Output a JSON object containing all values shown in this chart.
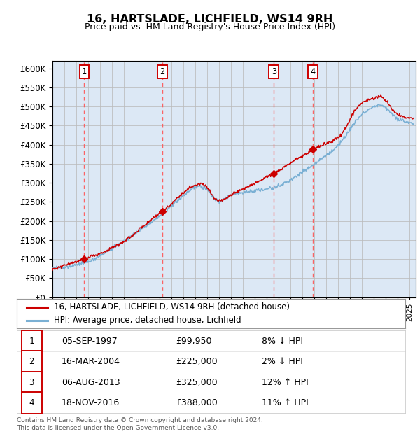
{
  "title": "16, HARTSLADE, LICHFIELD, WS14 9RH",
  "subtitle": "Price paid vs. HM Land Registry's House Price Index (HPI)",
  "ylim": [
    0,
    620000
  ],
  "xlim_start": 1995.0,
  "xlim_end": 2025.5,
  "sale_points": [
    {
      "year": 1997.67,
      "price": 99950,
      "label": "1"
    },
    {
      "year": 2004.21,
      "price": 225000,
      "label": "2"
    },
    {
      "year": 2013.59,
      "price": 325000,
      "label": "3"
    },
    {
      "year": 2016.88,
      "price": 388000,
      "label": "4"
    }
  ],
  "legend_items": [
    {
      "color": "#cc0000",
      "label": "16, HARTSLADE, LICHFIELD, WS14 9RH (detached house)"
    },
    {
      "color": "#7ab0d4",
      "label": "HPI: Average price, detached house, Lichfield"
    }
  ],
  "table_rows": [
    {
      "num": "1",
      "date": "05-SEP-1997",
      "price": "£99,950",
      "relation": "8% ↓ HPI"
    },
    {
      "num": "2",
      "date": "16-MAR-2004",
      "price": "£225,000",
      "relation": "2% ↓ HPI"
    },
    {
      "num": "3",
      "date": "06-AUG-2013",
      "price": "£325,000",
      "relation": "12% ↑ HPI"
    },
    {
      "num": "4",
      "date": "18-NOV-2016",
      "price": "£388,000",
      "relation": "11% ↑ HPI"
    }
  ],
  "footnote": "Contains HM Land Registry data © Crown copyright and database right 2024.\nThis data is licensed under the Open Government Licence v3.0.",
  "bg_color": "#dce8f5",
  "grid_color": "#bbbbbb",
  "hpi_color": "#7ab0d4",
  "price_line_color": "#cc0000",
  "dashed_line_color": "#ff5555"
}
